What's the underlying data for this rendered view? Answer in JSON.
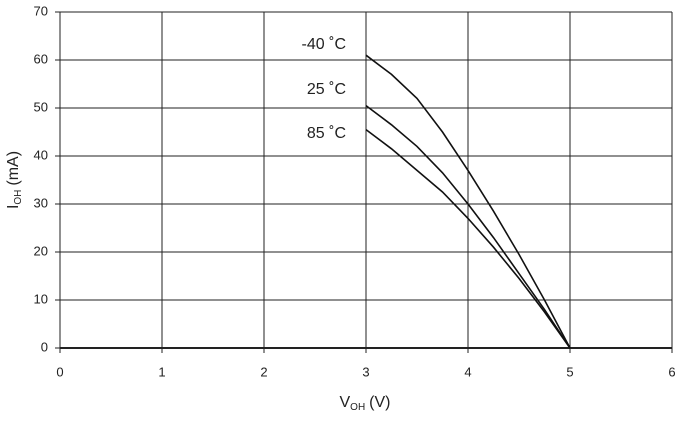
{
  "chart_data": {
    "type": "line",
    "xlabel": [
      "V",
      "OH",
      "(V)"
    ],
    "ylabel": [
      "I",
      "OH",
      "(mA)"
    ],
    "x": [
      3,
      3.25,
      3.5,
      3.75,
      4,
      4.25,
      4.5,
      4.75,
      5
    ],
    "series": [
      {
        "name": "-40 ˚C",
        "color": "#111111",
        "values": [
          61,
          57,
          52,
          45,
          37,
          28.5,
          19.5,
          10,
          0
        ]
      },
      {
        "name": "25 ˚C",
        "color": "#111111",
        "values": [
          50.5,
          46.5,
          42,
          36.5,
          30,
          23,
          15.5,
          8,
          0
        ]
      },
      {
        "name": "85 ˚C",
        "color": "#111111",
        "values": [
          45.5,
          41.5,
          37,
          32.5,
          27,
          21,
          14.5,
          7.5,
          0
        ]
      }
    ],
    "xlim": [
      0,
      6
    ],
    "xticks": [
      0,
      1,
      2,
      3,
      4,
      5,
      6
    ],
    "ylim": [
      0,
      70
    ],
    "yticks": [
      0,
      10,
      20,
      30,
      40,
      50,
      60,
      70
    ],
    "grid": true
  }
}
